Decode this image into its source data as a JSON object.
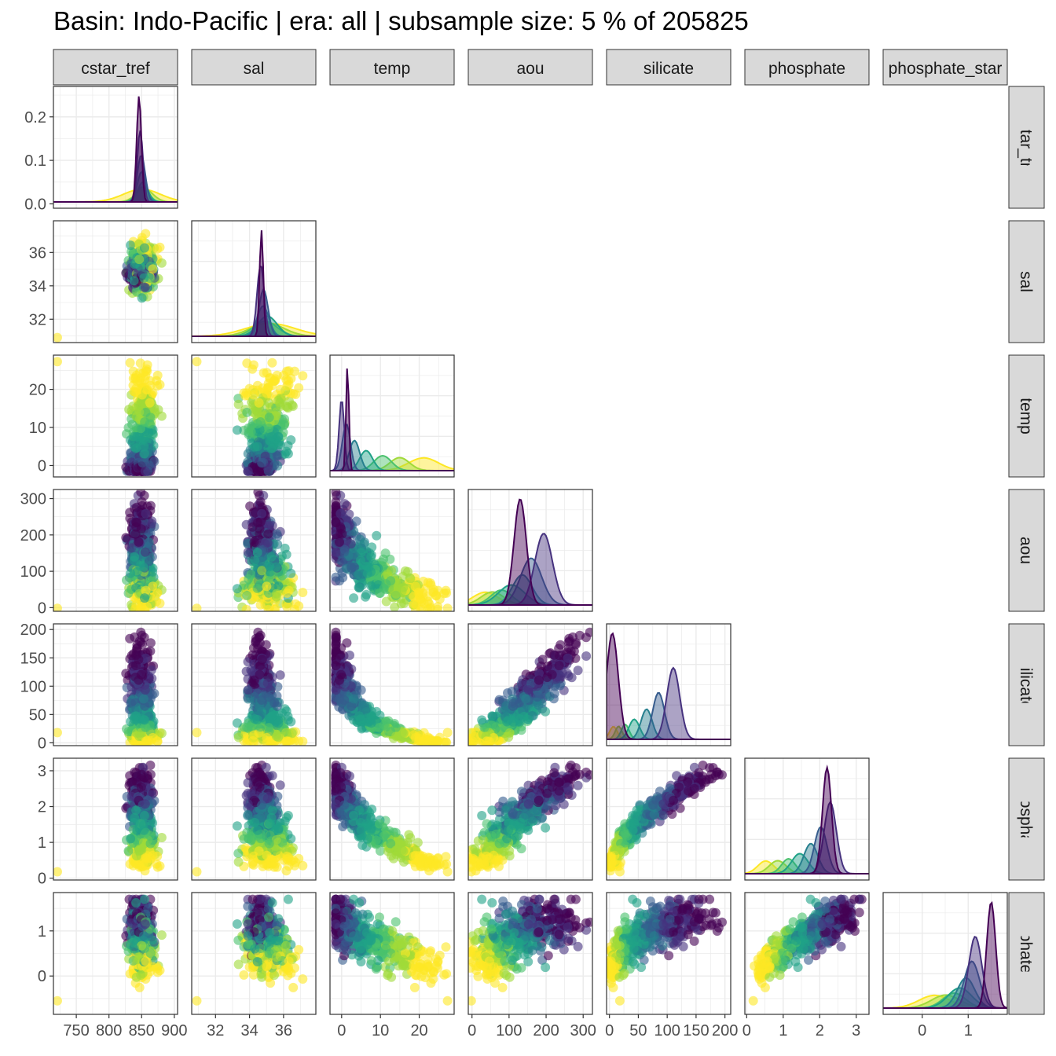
{
  "title": "Basin: Indo-Pacific | era: all | subsample size: 5 % of 205825",
  "chart_data": {
    "type": "scatter",
    "layout": "pairs-lower-triangle",
    "title": "Basin: Indo-Pacific | era: all | subsample size: 5 % of 205825",
    "variables": [
      "cstar_tref",
      "sal",
      "temp",
      "aou",
      "silicate",
      "phosphate",
      "phosphate_star"
    ],
    "strip_labels": [
      "cstar_tref",
      "sal",
      "temp",
      "aou",
      "silicate",
      "phosphate",
      "phosphate_star"
    ],
    "palette": [
      "#fde725",
      "#a0da39",
      "#4ac16d",
      "#1fa187",
      "#277f8e",
      "#365c8d",
      "#46327e",
      "#440154"
    ],
    "grid": true,
    "x_axes": [
      {
        "var": "cstar_tref",
        "range": [
          715,
          905
        ],
        "ticks": [
          750,
          800,
          850,
          900
        ],
        "labels": [
          "750",
          "800",
          "850",
          "900"
        ]
      },
      {
        "var": "sal",
        "range": [
          30.6,
          37.9
        ],
        "ticks": [
          32,
          34,
          36
        ],
        "labels": [
          "32",
          "34",
          "36"
        ]
      },
      {
        "var": "temp",
        "range": [
          -3,
          29
        ],
        "ticks": [
          0,
          10,
          20
        ],
        "labels": [
          "0",
          "10",
          "20"
        ]
      },
      {
        "var": "aou",
        "range": [
          -10,
          325
        ],
        "ticks": [
          0,
          100,
          200,
          300
        ],
        "labels": [
          "0",
          "100",
          "200",
          "300"
        ]
      },
      {
        "var": "silicate",
        "range": [
          -5,
          210
        ],
        "ticks": [
          0,
          50,
          100,
          150,
          200
        ],
        "labels": [
          "0",
          "50",
          "100",
          "150",
          "200"
        ]
      },
      {
        "var": "phosphate",
        "range": [
          -0.05,
          3.35
        ],
        "ticks": [
          0,
          1,
          2,
          3
        ],
        "labels": [
          "0",
          "1",
          "2",
          "3"
        ]
      },
      {
        "var": "phosphate_star",
        "range": [
          -0.85,
          1.85
        ],
        "ticks": [
          0,
          1
        ],
        "labels": [
          "0",
          "1"
        ]
      }
    ],
    "y_axes": [
      {
        "var": "cstar_tref",
        "range": [
          -0.01,
          0.27
        ],
        "ticks": [
          0,
          0.1,
          0.2
        ],
        "labels": [
          "0.0",
          "0.1",
          "0.2"
        ]
      },
      {
        "var": "sal",
        "range": [
          30.6,
          37.9
        ],
        "ticks": [
          32,
          34,
          36
        ],
        "labels": [
          "32",
          "34",
          "36"
        ]
      },
      {
        "var": "temp",
        "range": [
          -3,
          29
        ],
        "ticks": [
          0,
          10,
          20
        ],
        "labels": [
          "0",
          "10",
          "20"
        ]
      },
      {
        "var": "aou",
        "range": [
          -10,
          325
        ],
        "ticks": [
          0,
          100,
          200,
          300
        ],
        "labels": [
          "0",
          "100",
          "200",
          "300"
        ]
      },
      {
        "var": "silicate",
        "range": [
          -5,
          210
        ],
        "ticks": [
          0,
          50,
          100,
          150,
          200
        ],
        "labels": [
          "0",
          "50",
          "100",
          "150",
          "200"
        ]
      },
      {
        "var": "phosphate",
        "range": [
          -0.05,
          3.35
        ],
        "ticks": [
          0,
          1,
          2,
          3
        ],
        "labels": [
          "0",
          "1",
          "2",
          "3"
        ]
      },
      {
        "var": "phosphate_star",
        "range": [
          -0.85,
          1.85
        ],
        "ticks": [
          0,
          1
        ],
        "labels": [
          "0",
          "1"
        ]
      }
    ],
    "density_peaks": [
      {
        "var": "cstar_tref",
        "peak_x": 846,
        "peak_density": 0.26
      },
      {
        "var": "sal",
        "peak_x": 34.7,
        "peak_density": null
      },
      {
        "var": "temp",
        "peak_x": 1.5,
        "peak_density": null
      },
      {
        "var": "aou",
        "peak_x": 130,
        "peak_density": null
      },
      {
        "var": "silicate",
        "peak_x": 5,
        "peak_density": null
      },
      {
        "var": "phosphate",
        "peak_x": 2.2,
        "peak_density": null
      },
      {
        "var": "phosphate_star",
        "peak_x": 1.5,
        "peak_density": null
      }
    ]
  }
}
